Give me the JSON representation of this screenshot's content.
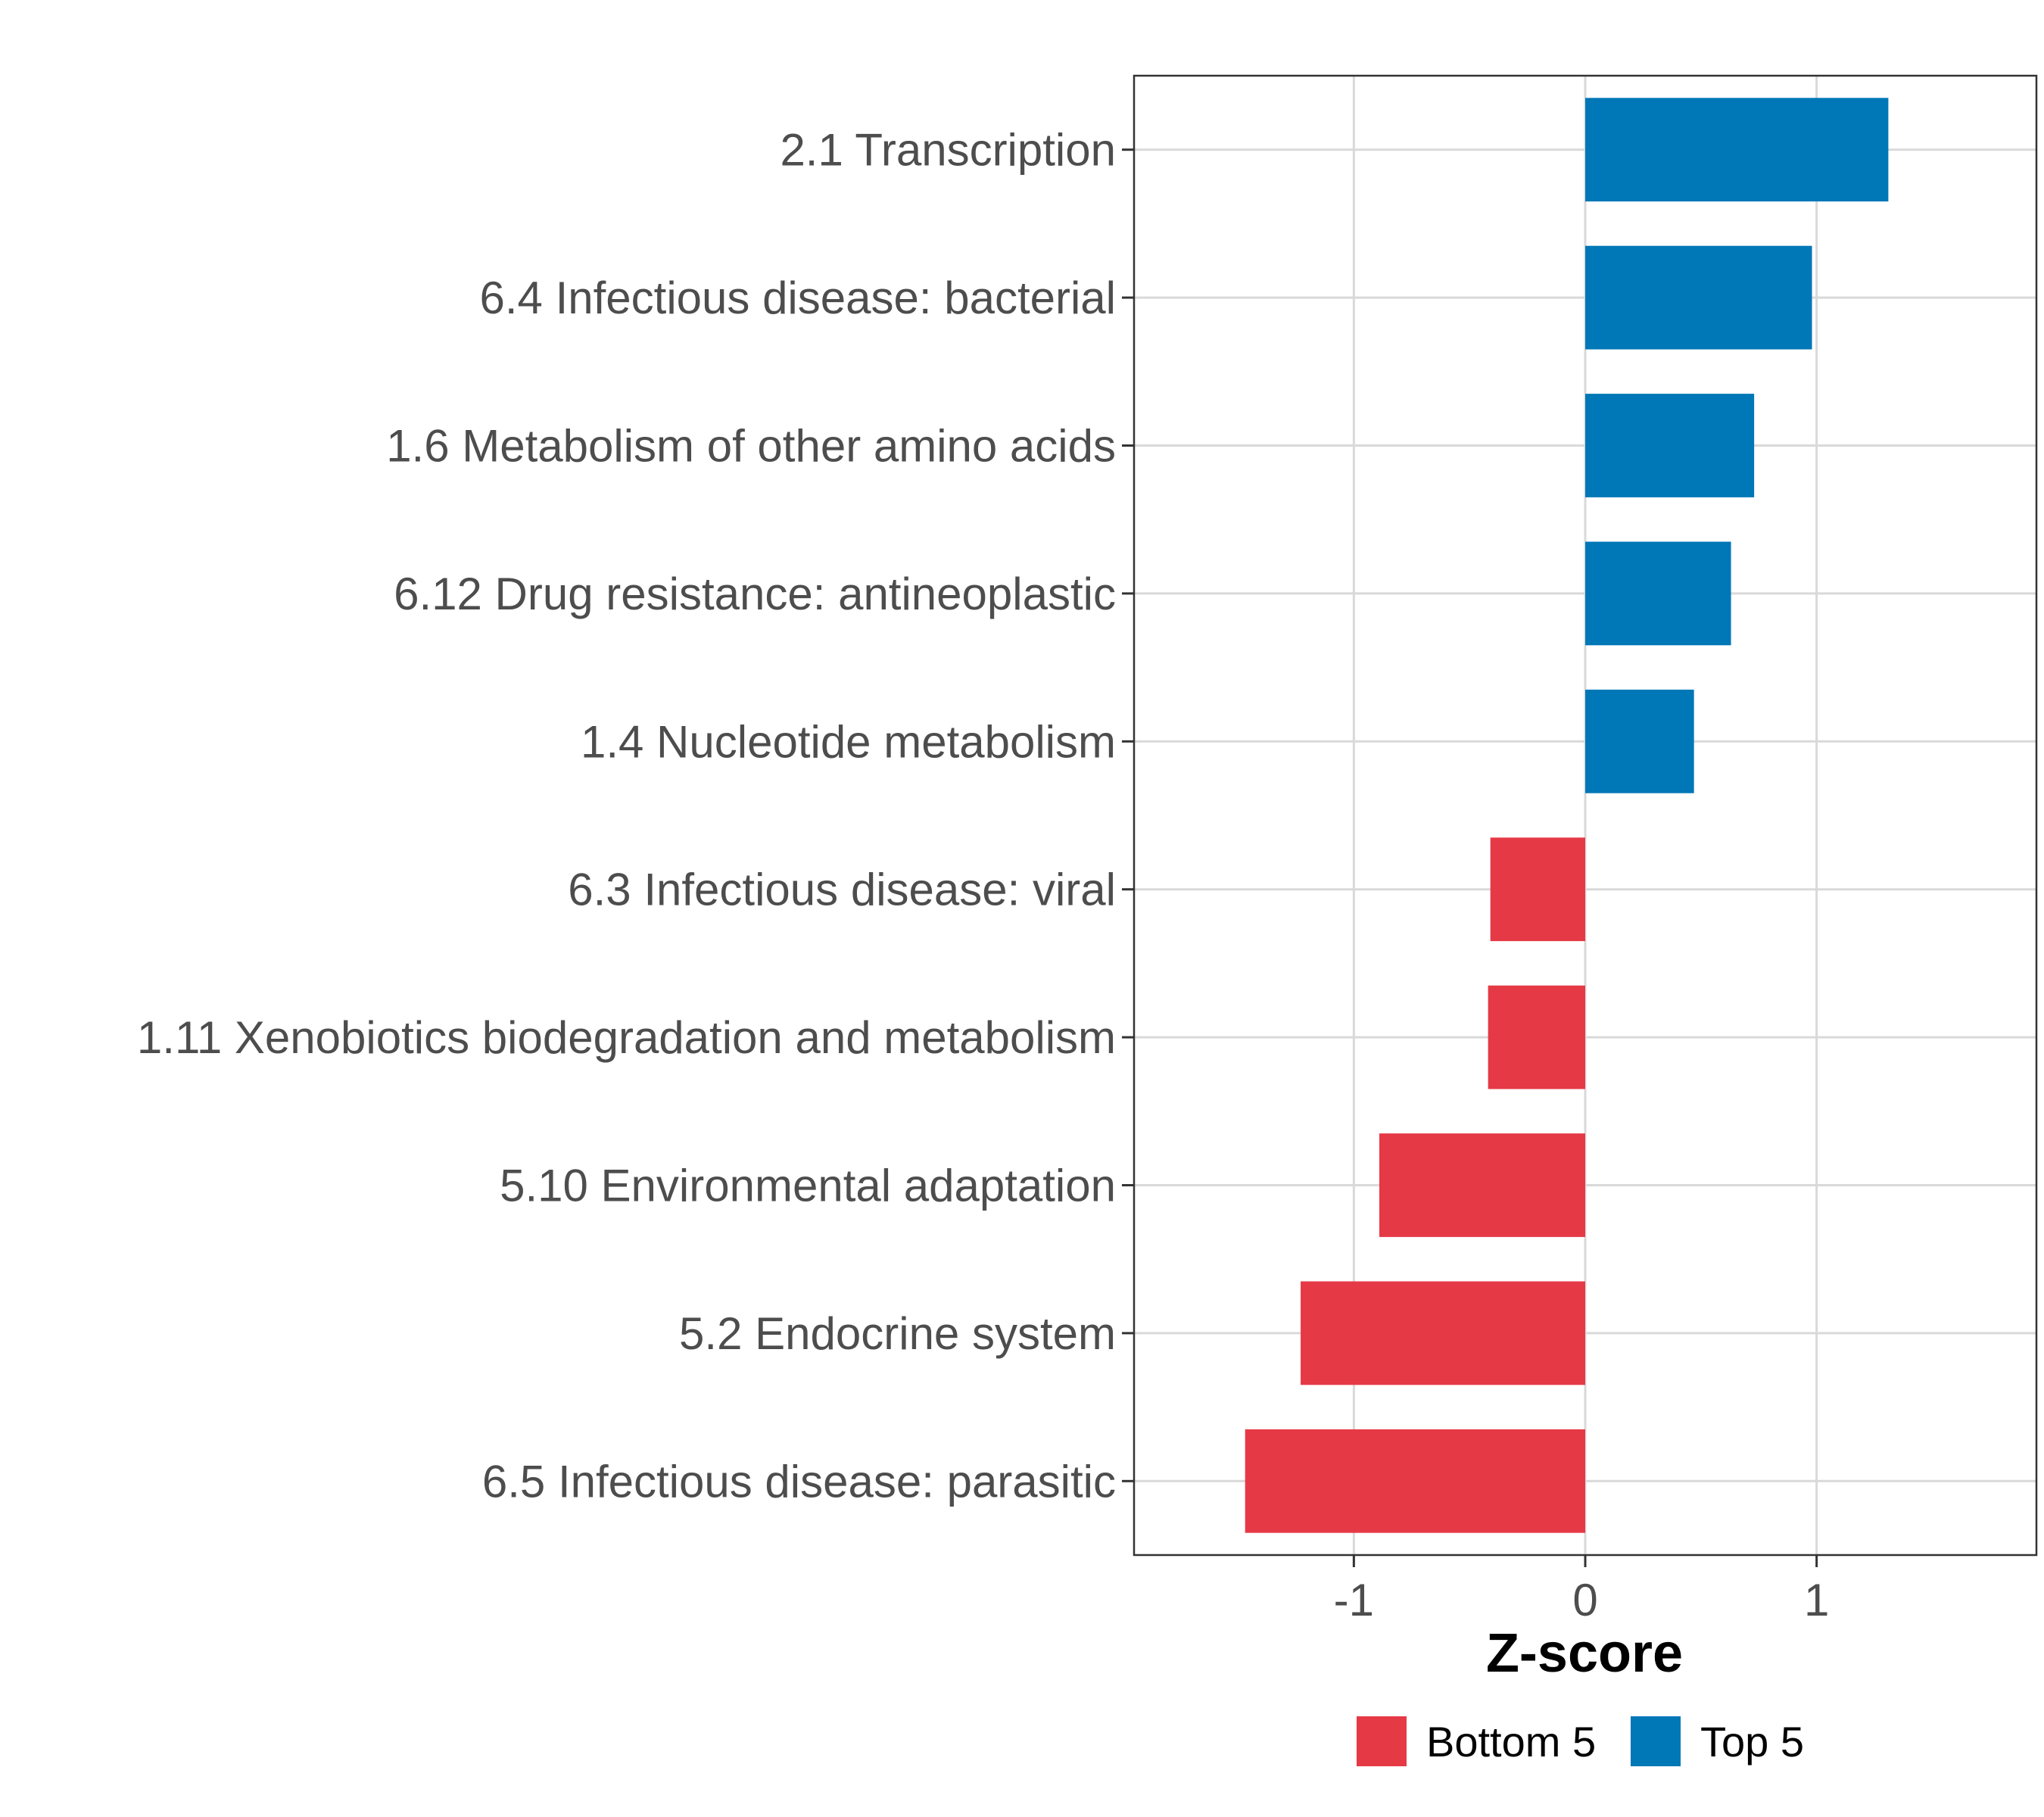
{
  "chart_data": {
    "type": "bar",
    "orientation": "horizontal",
    "title": "",
    "xlabel": "Z-score",
    "ylabel": "",
    "xlim": [
      -1.95,
      1.95
    ],
    "x_ticks": [
      -1,
      0,
      1
    ],
    "x_tick_labels": [
      "-1",
      "0",
      "1"
    ],
    "grid": true,
    "legend_position": "bottom",
    "categories": [
      "2.1 Transcription",
      "6.4 Infectious disease: bacterial",
      "1.6 Metabolism of other amino acids",
      "6.12 Drug resistance: antineoplastic",
      "1.4 Nucleotide metabolism",
      "6.3 Infectious disease: viral",
      "1.11 Xenobiotics biodegradation and metabolism",
      "5.10 Environmental adaptation",
      "5.2 Endocrine system",
      "6.5 Infectious disease: parasitic"
    ],
    "values": [
      1.31,
      0.98,
      0.73,
      0.63,
      0.47,
      -0.41,
      -0.42,
      -0.89,
      -1.23,
      -1.47
    ],
    "groups": [
      "Top 5",
      "Top 5",
      "Top 5",
      "Top 5",
      "Top 5",
      "Bottom 5",
      "Bottom 5",
      "Bottom 5",
      "Bottom 5",
      "Bottom 5"
    ],
    "legend": [
      {
        "label": "Bottom 5",
        "color": "#e63946"
      },
      {
        "label": "Top 5",
        "color": "#0077b6"
      }
    ]
  }
}
